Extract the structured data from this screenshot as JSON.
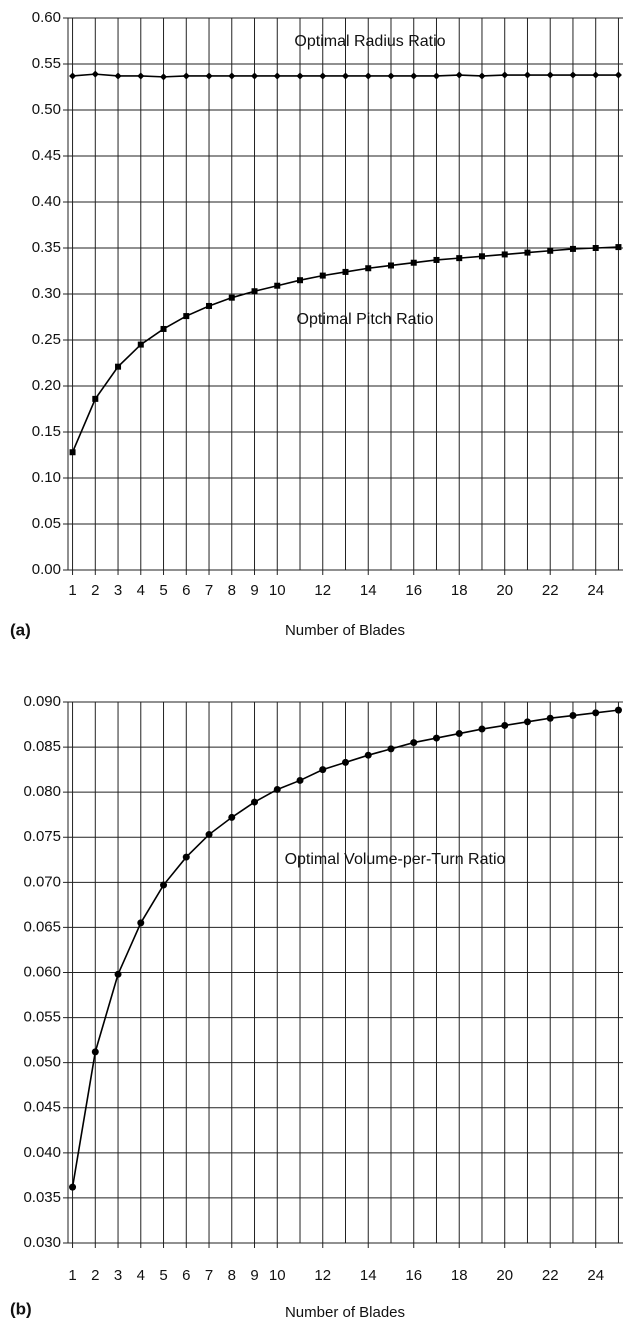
{
  "chart_data": [
    {
      "type": "line",
      "panel_label": "(a)",
      "x_label": "Number of Blades",
      "x": [
        1,
        2,
        3,
        4,
        5,
        6,
        7,
        8,
        9,
        10,
        11,
        12,
        13,
        14,
        15,
        16,
        17,
        18,
        19,
        20,
        21,
        22,
        23,
        24,
        25
      ],
      "xlim": [
        0.8,
        25.2
      ],
      "xticks": [
        1,
        2,
        3,
        4,
        5,
        6,
        7,
        8,
        9,
        10,
        12,
        14,
        16,
        18,
        20,
        22,
        24
      ],
      "minor_xticks": [
        11,
        13,
        15,
        17,
        19,
        21,
        23,
        25
      ],
      "ylim": [
        0,
        0.6
      ],
      "yticks": [
        {
          "value": 0,
          "label": "0.00"
        },
        {
          "value": 0.05,
          "label": "0.05"
        },
        {
          "value": 0.1,
          "label": "0.10"
        },
        {
          "value": 0.15,
          "label": "0.15"
        },
        {
          "value": 0.2,
          "label": "0.20"
        },
        {
          "value": 0.25,
          "label": "0.25"
        },
        {
          "value": 0.3,
          "label": "0.30"
        },
        {
          "value": 0.35,
          "label": "0.35"
        },
        {
          "value": 0.4,
          "label": "0.40"
        },
        {
          "value": 0.45,
          "label": "0.45"
        },
        {
          "value": 0.5,
          "label": "0.50"
        },
        {
          "value": 0.55,
          "label": "0.55"
        },
        {
          "value": 0.6,
          "label": "0.60"
        }
      ],
      "grid": true,
      "series": [
        {
          "name": "Optimal Radius Ratio",
          "color": "#000000",
          "marker": "diamond",
          "values": [
            0.537,
            0.539,
            0.537,
            0.537,
            0.536,
            0.537,
            0.537,
            0.537,
            0.537,
            0.537,
            0.537,
            0.537,
            0.537,
            0.537,
            0.537,
            0.537,
            0.537,
            0.538,
            0.537,
            0.538,
            0.538,
            0.538,
            0.538,
            0.538,
            0.538
          ]
        },
        {
          "name": "Optimal Pitch Ratio",
          "color": "#000000",
          "marker": "square",
          "values": [
            0.128,
            0.186,
            0.221,
            0.245,
            0.262,
            0.276,
            0.287,
            0.296,
            0.303,
            0.309,
            0.315,
            0.32,
            0.324,
            0.328,
            0.331,
            0.334,
            0.337,
            0.339,
            0.341,
            0.343,
            0.345,
            0.347,
            0.349,
            0.35,
            0.351
          ]
        }
      ]
    },
    {
      "type": "line",
      "panel_label": "(b)",
      "x_label": "Number of Blades",
      "x": [
        1,
        2,
        3,
        4,
        5,
        6,
        7,
        8,
        9,
        10,
        11,
        12,
        13,
        14,
        15,
        16,
        17,
        18,
        19,
        20,
        21,
        22,
        23,
        24,
        25
      ],
      "xlim": [
        0.8,
        25.2
      ],
      "xticks": [
        1,
        2,
        3,
        4,
        5,
        6,
        7,
        8,
        9,
        10,
        12,
        14,
        16,
        18,
        20,
        22,
        24
      ],
      "minor_xticks": [
        11,
        13,
        15,
        17,
        19,
        21,
        23,
        25
      ],
      "ylim": [
        0.03,
        0.09
      ],
      "yticks": [
        {
          "value": 0.03,
          "label": "0.030"
        },
        {
          "value": 0.035,
          "label": "0.035"
        },
        {
          "value": 0.04,
          "label": "0.040"
        },
        {
          "value": 0.045,
          "label": "0.045"
        },
        {
          "value": 0.05,
          "label": "0.050"
        },
        {
          "value": 0.055,
          "label": "0.055"
        },
        {
          "value": 0.06,
          "label": "0.060"
        },
        {
          "value": 0.065,
          "label": "0.065"
        },
        {
          "value": 0.07,
          "label": "0.070"
        },
        {
          "value": 0.075,
          "label": "0.075"
        },
        {
          "value": 0.08,
          "label": "0.080"
        },
        {
          "value": 0.085,
          "label": "0.085"
        },
        {
          "value": 0.09,
          "label": "0.090"
        }
      ],
      "grid": true,
      "series": [
        {
          "name": "Optimal Volume-per-Turn Ratio",
          "color": "#000000",
          "marker": "circle",
          "values": [
            0.0362,
            0.0512,
            0.0598,
            0.0655,
            0.0697,
            0.0728,
            0.0753,
            0.0772,
            0.0789,
            0.0803,
            0.0813,
            0.0825,
            0.0833,
            0.0841,
            0.0848,
            0.0855,
            0.086,
            0.0865,
            0.087,
            0.0874,
            0.0878,
            0.0882,
            0.0885,
            0.0888,
            0.0891
          ]
        }
      ]
    }
  ]
}
